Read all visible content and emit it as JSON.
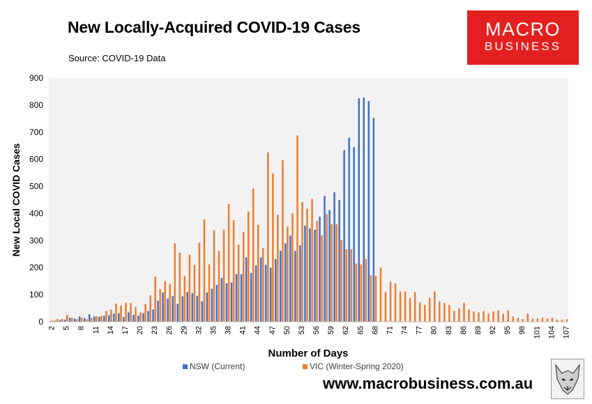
{
  "title": "New Locally-Acquired COVID-19 Cases",
  "subtitle": "Source: COVID-19 Data",
  "logo": {
    "line1": "MACRO",
    "line2": "BUSINESS",
    "color": "#e3201f"
  },
  "website": "www.macrobusiness.com.au",
  "wolf_icon": "wolf-head-icon",
  "chart_data": {
    "type": "bar",
    "xlabel": "Number of Days",
    "ylabel": "New Local COVID Cases",
    "ylim": [
      0,
      900
    ],
    "yticks": [
      0,
      100,
      200,
      300,
      400,
      500,
      600,
      700,
      800,
      900
    ],
    "xticks": [
      2,
      5,
      8,
      11,
      14,
      17,
      20,
      23,
      26,
      29,
      32,
      35,
      38,
      41,
      44,
      47,
      50,
      53,
      56,
      59,
      62,
      65,
      68,
      71,
      74,
      77,
      80,
      83,
      86,
      89,
      92,
      95,
      98,
      101,
      104,
      107
    ],
    "x_start": 2,
    "legend_position": "bottom",
    "grid": false,
    "series": [
      {
        "name": "NSW (Current)",
        "color": "#4472c4",
        "values": [
          2,
          4,
          6,
          8,
          15,
          12,
          20,
          14,
          28,
          20,
          18,
          22,
          25,
          30,
          32,
          18,
          35,
          26,
          22,
          32,
          40,
          46,
          78,
          108,
          86,
          95,
          66,
          94,
          110,
          105,
          96,
          76,
          108,
          122,
          136,
          162,
          142,
          145,
          176,
          176,
          238,
          180,
          208,
          238,
          210,
          200,
          232,
          262,
          290,
          318,
          262,
          282,
          355,
          345,
          340,
          388,
          465,
          413,
          478,
          450,
          634,
          680,
          645,
          825,
          828,
          815,
          752
        ]
      },
      {
        "name": "VIC (Winter-Spring 2020)",
        "color": "#ed7d31",
        "values": [
          5,
          10,
          10,
          25,
          15,
          10,
          15,
          10,
          15,
          20,
          22,
          40,
          45,
          67,
          60,
          70,
          70,
          55,
          35,
          65,
          98,
          167,
          120,
          150,
          140,
          290,
          255,
          170,
          248,
          210,
          293,
          378,
          212,
          338,
          262,
          340,
          435,
          375,
          285,
          332,
          407,
          492,
          358,
          272,
          625,
          548,
          396,
          597,
          352,
          400,
          688,
          442,
          418,
          454,
          372,
          320,
          398,
          360,
          360,
          302,
          268,
          268,
          215,
          212,
          232,
          172,
          170,
          200,
          110,
          148,
          142,
          112,
          112,
          88,
          110,
          72,
          62,
          88,
          112,
          75,
          70,
          62,
          40,
          50,
          70,
          45,
          38,
          35,
          40,
          30,
          38,
          42,
          30,
          42,
          20,
          15,
          10,
          30,
          12,
          12,
          15,
          12,
          15,
          8,
          8,
          10
        ]
      }
    ]
  }
}
